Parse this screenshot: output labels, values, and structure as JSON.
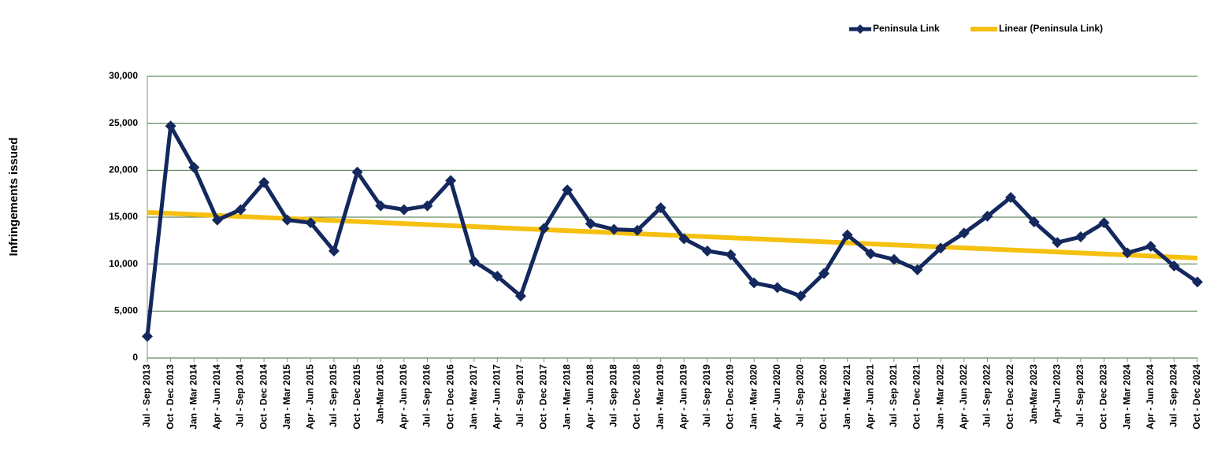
{
  "chart_data": {
    "type": "line",
    "y_label": "Infringements issued",
    "categories": [
      "Jul - Sep 2013",
      "Oct - Dec 2013",
      "Jan - Mar 2014",
      "Apr - Jun 2014",
      "Jul - Sep 2014",
      "Oct - Dec 2014",
      "Jan - Mar 2015",
      "Apr - Jun 2015",
      "Jul - Sep 2015",
      "Oct - Dec 2015",
      "Jan-Mar 2016",
      "Apr - Jun 2016",
      "Jul - Sep 2016",
      "Oct - Dec 2016",
      "Jan - Mar 2017",
      "Apr - Jun 2017",
      "Jul - Sep 2017",
      "Oct - Dec 2017",
      "Jan - Mar 2018",
      "Apr - Jun 2018",
      "Jul - Sep 2018",
      "Oct - Dec 2018",
      "Jan - Mar 2019",
      "Apr - Jun 2019",
      "Jul - Sep 2019",
      "Oct - Dec 2019",
      "Jan - Mar 2020",
      "Apr - Jun 2020",
      "Jul - Sep 2020",
      "Oct - Dec 2020",
      "Jan - Mar 2021",
      "Apr - Jun 2021",
      "Jul - Sep 2021",
      "Oct - Dec 2021",
      "Jan - Mar 2022",
      "Apr - Jun 2022",
      "Jul - Sep 2022",
      "Oct - Dec 2022",
      "Jan-Mar 2023",
      "Apr-Jun 2023",
      "Jul - Sep 2023",
      "Oct - Dec 2023",
      "Jan - Mar 2024",
      "Apr - Jun 2024",
      "Jul - Sep 2024",
      "Oct - Dec 2024"
    ],
    "series": [
      {
        "name": "Peninsula Link",
        "color": "#14285e",
        "values": [
          2300,
          24700,
          20300,
          14700,
          15800,
          18700,
          14700,
          14400,
          11400,
          19800,
          16200,
          15800,
          16200,
          18900,
          10300,
          8700,
          6600,
          13800,
          17900,
          14300,
          13700,
          13600,
          16000,
          12700,
          11400,
          11000,
          8000,
          7500,
          6600,
          9000,
          13100,
          11100,
          10500,
          9400,
          11700,
          13300,
          15100,
          17100,
          14500,
          12300,
          12900,
          14400,
          11200,
          11900,
          9800,
          8100
        ]
      }
    ],
    "trendline": {
      "name": "Linear (Peninsula Link)",
      "fit": "linear",
      "color": "#f5c010"
    },
    "ylim": [
      0,
      30000
    ],
    "yticks": [
      0,
      {
        "value": 5000,
        "label": "5,000"
      },
      {
        "value": 10000,
        "label": "10,000"
      },
      {
        "value": 15000,
        "label": "15,000"
      },
      {
        "value": 20000,
        "label": "20,000"
      },
      {
        "value": 25000,
        "label": "25,000"
      },
      {
        "value": 30000,
        "label": "30,000"
      }
    ],
    "grid": true,
    "legend": "top-right"
  }
}
